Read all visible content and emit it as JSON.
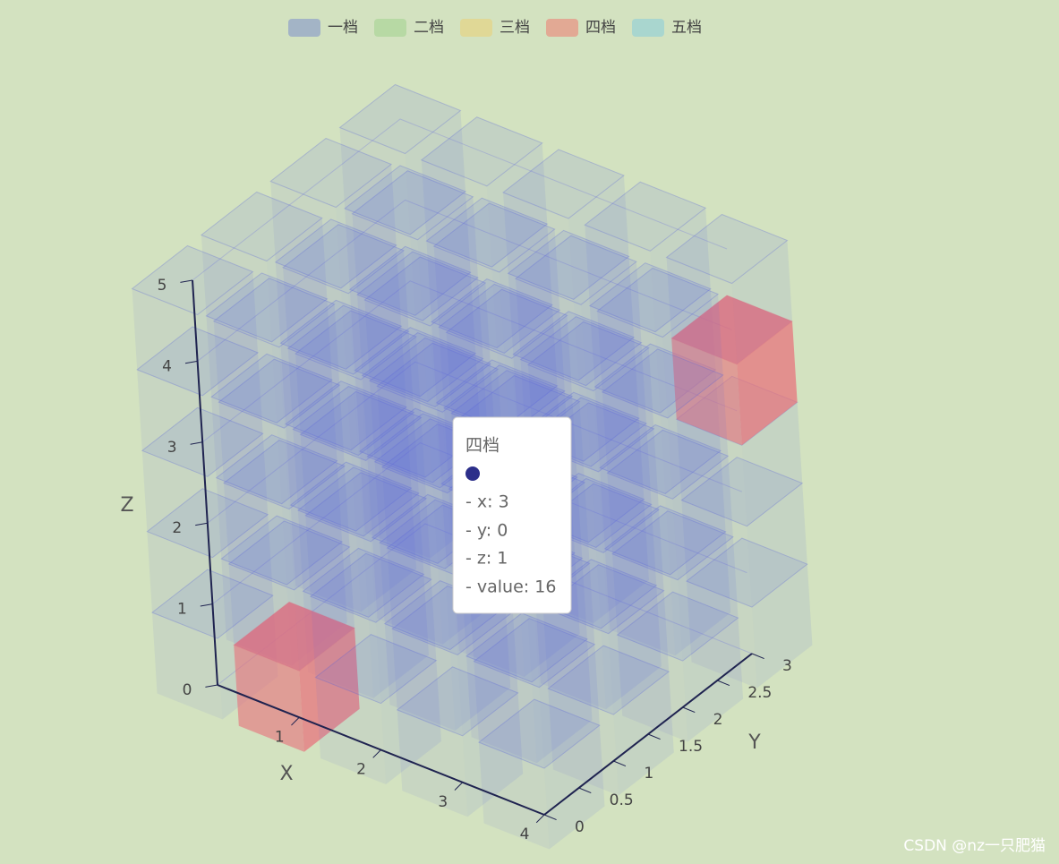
{
  "chart_data": {
    "type": "bar3D",
    "series": [
      {
        "name": "一档",
        "color": "#a3b4c6"
      },
      {
        "name": "二档",
        "color": "#b7d9a4"
      },
      {
        "name": "三档",
        "color": "#e0d896"
      },
      {
        "name": "四档",
        "color": "#e2a994"
      },
      {
        "name": "五档",
        "color": "#a9d6cf"
      }
    ],
    "xlabel": "X",
    "ylabel": "Y",
    "zlabel": "Z",
    "xlim": [
      0,
      4
    ],
    "xticks": [
      1,
      2,
      3,
      4
    ],
    "ylim": [
      0,
      3
    ],
    "yticks": [
      0,
      0.5,
      1,
      1.5,
      2,
      2.5,
      3
    ],
    "zlim": [
      0,
      5
    ],
    "zticks": [
      0,
      1,
      2,
      3,
      4,
      5
    ]
  },
  "tooltip": {
    "title": "四档",
    "lines": [
      "- x: 3",
      "- y: 0",
      "- z: 1",
      "- value: 16"
    ]
  },
  "watermark": "CSDN @nz一只肥猫"
}
